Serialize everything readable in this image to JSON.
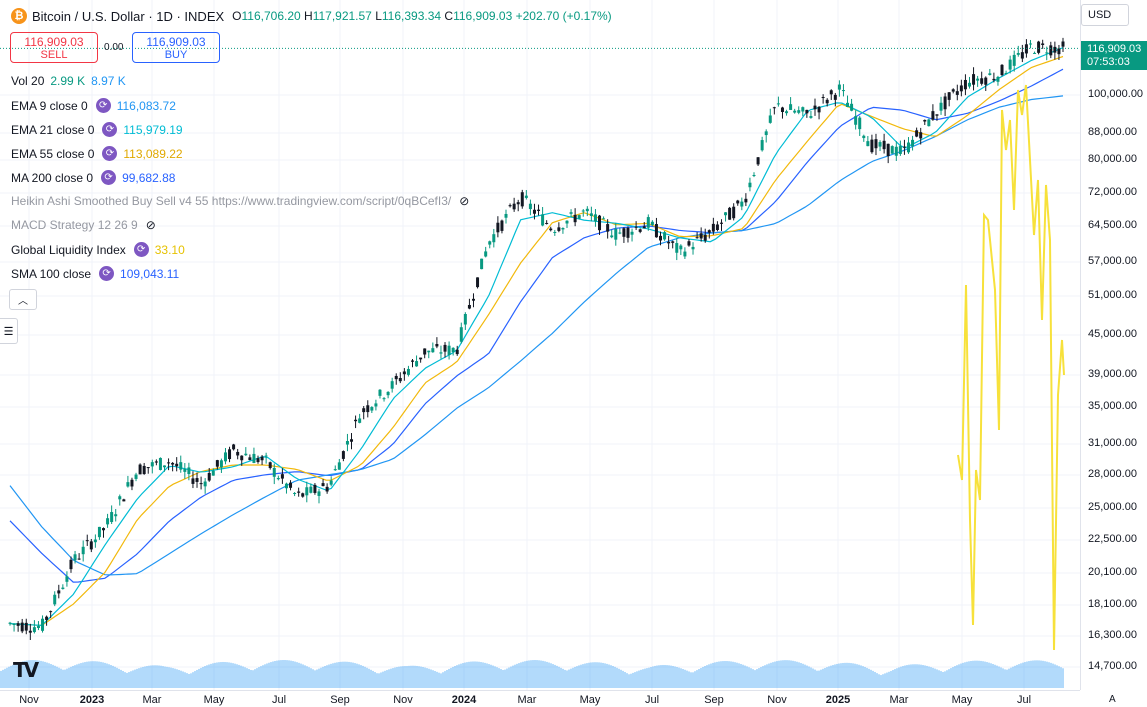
{
  "header": {
    "title": "Bitcoin / U.S. Dollar · 1D · INDEX",
    "ohlc": {
      "o_label": "O",
      "o": "116,706.20",
      "h_label": "H",
      "h": "117,921.57",
      "l_label": "L",
      "l": "116,393.34",
      "c_label": "C",
      "c": "116,909.03",
      "change": "+202.70 (+0.17%)"
    }
  },
  "trade": {
    "sell_price": "116,909.03",
    "sell_label": "SELL",
    "spread": "0.00",
    "buy_price": "116,909.03",
    "buy_label": "BUY"
  },
  "indicators": [
    {
      "label": "Vol 20",
      "val1": "2.99 K",
      "val2": "8.97 K",
      "color1": "#089981",
      "color2": "#2196f3"
    },
    {
      "label": "EMA 9 close 0",
      "value": "116,083.72",
      "color": "#2196f3"
    },
    {
      "label": "EMA 21 close 0",
      "value": "115,979.19",
      "color": "#00bcd4"
    },
    {
      "label": "EMA 55 close 0",
      "value": "113,089.22",
      "color": "#f2b90c"
    },
    {
      "label": "MA 200 close 0",
      "value": "99,682.88",
      "color": "#2962ff"
    },
    {
      "label": "Heikin Ashi Smoothed Buy Sell v4 55 https://www.tradingview.com/script/0qBCefI3/"
    },
    {
      "label": "MACD Strategy 12 26 9"
    },
    {
      "label": "Global Liquidity Index",
      "value": "33.10",
      "color": "#f2d21c"
    },
    {
      "label": "SMA 100 close",
      "value": "109,043.11",
      "color": "#2962ff"
    }
  ],
  "price_axis": {
    "currency": "USD",
    "last_price": "116,909.03",
    "countdown": "07:53:03",
    "ticks": [
      "100,000.00",
      "88,000.00",
      "80,000.00",
      "72,000.00",
      "64,500.00",
      "57,000.00",
      "51,000.00",
      "45,000.00",
      "39,000.00",
      "35,000.00",
      "31,000.00",
      "28,000.00",
      "25,000.00",
      "22,500.00",
      "20,100.00",
      "18,100.00",
      "16,300.00",
      "14,700.00"
    ],
    "auto_label": "A"
  },
  "time_axis": {
    "ticks": [
      {
        "label": "Nov",
        "bold": false
      },
      {
        "label": "2023",
        "bold": true
      },
      {
        "label": "Mar",
        "bold": false
      },
      {
        "label": "May",
        "bold": false
      },
      {
        "label": "Jul",
        "bold": false
      },
      {
        "label": "Sep",
        "bold": false
      },
      {
        "label": "Nov",
        "bold": false
      },
      {
        "label": "2024",
        "bold": true
      },
      {
        "label": "Mar",
        "bold": false
      },
      {
        "label": "May",
        "bold": false
      },
      {
        "label": "Jul",
        "bold": false
      },
      {
        "label": "Sep",
        "bold": false
      },
      {
        "label": "Nov",
        "bold": false
      },
      {
        "label": "2025",
        "bold": true
      },
      {
        "label": "Mar",
        "bold": false
      },
      {
        "label": "May",
        "bold": false
      },
      {
        "label": "Jul",
        "bold": false
      }
    ]
  },
  "colors": {
    "up": "#089981",
    "down": "#131722",
    "ema9": "#2196f3",
    "ema21": "#00bcd4",
    "ema55": "#f2b90c",
    "ma200": "#2962ff",
    "sma100": "#2962ff",
    "liquidity": "#f7e13b",
    "volume": "#2196f3"
  },
  "chart_data": {
    "type": "line",
    "log_scale": true,
    "grid": true,
    "x": [
      "2022-11",
      "2022-12",
      "2023-01",
      "2023-02",
      "2023-03",
      "2023-04",
      "2023-05",
      "2023-06",
      "2023-07",
      "2023-08",
      "2023-09",
      "2023-10",
      "2023-11",
      "2023-12",
      "2024-01",
      "2024-02",
      "2024-03",
      "2024-04",
      "2024-05",
      "2024-06",
      "2024-07",
      "2024-08",
      "2024-09",
      "2024-10",
      "2024-11",
      "2024-12",
      "2025-01",
      "2025-02",
      "2025-03",
      "2025-04",
      "2025-05",
      "2025-06",
      "2025-07",
      "2025-08"
    ],
    "series": [
      {
        "name": "Bitcoin / U.S. Dollar",
        "values": [
          17000,
          16800,
          21000,
          23500,
          28500,
          29300,
          27200,
          30400,
          29300,
          26000,
          27000,
          34500,
          37800,
          42300,
          42600,
          61000,
          71000,
          64000,
          67500,
          62700,
          65000,
          59000,
          63300,
          70000,
          96400,
          93500,
          102000,
          84500,
          82500,
          94200,
          104600,
          107200,
          117500,
          116909
        ]
      },
      {
        "name": "SMA 100 close",
        "values": [
          24000,
          21500,
          19500,
          19800,
          21500,
          24000,
          26000,
          27500,
          28000,
          28300,
          27900,
          28500,
          31000,
          35500,
          39000,
          42000,
          50000,
          58000,
          62000,
          64000,
          64500,
          63500,
          63000,
          63500,
          70000,
          80000,
          90000,
          96000,
          95000,
          92000,
          94000,
          98000,
          103000,
          109043
        ]
      },
      {
        "name": "MA 200 close 0",
        "values": [
          27000,
          23500,
          21000,
          20000,
          20100,
          21500,
          23000,
          24500,
          26000,
          27500,
          28000,
          28500,
          29500,
          32000,
          35000,
          37500,
          41000,
          45000,
          50000,
          55000,
          60000,
          62000,
          63000,
          63500,
          65000,
          69000,
          75000,
          80000,
          83000,
          87000,
          92000,
          96000,
          98500,
          99683
        ]
      },
      {
        "name": "Global Liquidity Index",
        "values": [
          null,
          null,
          null,
          null,
          null,
          null,
          null,
          null,
          null,
          null,
          null,
          null,
          null,
          null,
          null,
          null,
          null,
          null,
          null,
          null,
          null,
          null,
          null,
          null,
          null,
          null,
          null,
          null,
          null,
          null,
          28000,
          60000,
          45000,
          39000
        ]
      }
    ],
    "ylim": [
      14000,
      125000
    ]
  }
}
